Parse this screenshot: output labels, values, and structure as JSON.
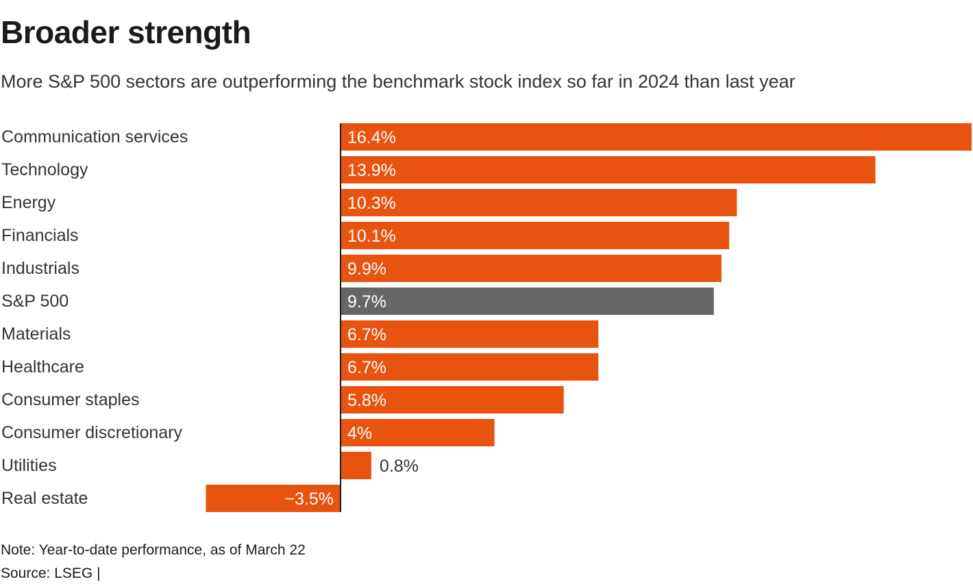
{
  "title": "Broader strength",
  "subtitle": "More S&P 500 sectors are outperforming the benchmark stock index so far in 2024 than last year",
  "note": "Note: Year-to-date performance, as of March 22",
  "source": "Source: LSEG |",
  "colors": {
    "sector": "#e8540f",
    "benchmark": "#666666",
    "label_inside": "#ffffff",
    "label_outside": "#333333",
    "axis": "#1a1a1a",
    "category_text": "#333333"
  },
  "chart_data": {
    "type": "bar",
    "orientation": "horizontal",
    "categories": [
      "Communication services",
      "Technology",
      "Energy",
      "Financials",
      "Industrials",
      "S&P 500",
      "Materials",
      "Healthcare",
      "Consumer staples",
      "Consumer discretionary",
      "Utilities",
      "Real estate"
    ],
    "values": [
      16.4,
      13.9,
      10.3,
      10.1,
      9.9,
      9.7,
      6.7,
      6.7,
      5.8,
      4.0,
      0.8,
      -3.5
    ],
    "value_labels": [
      "16.4%",
      "13.9%",
      "10.3%",
      "10.1%",
      "9.9%",
      "9.7%",
      "6.7%",
      "6.7%",
      "5.8%",
      "4%",
      "0.8%",
      "−3.5%"
    ],
    "highlight": [
      "S&P 500"
    ],
    "xlim": [
      -3.5,
      16.4
    ],
    "grid": false,
    "legend": "none"
  }
}
